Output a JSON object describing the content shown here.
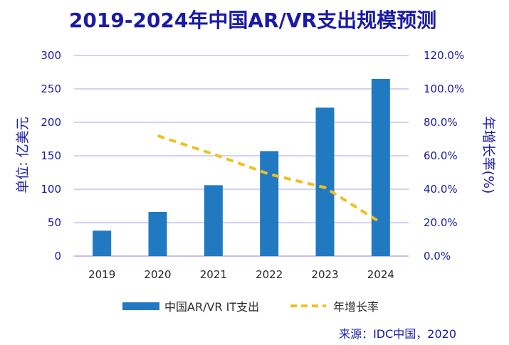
{
  "chart_data": {
    "type": "bar",
    "title": "2019-2024年中国AR/VR支出规模预测",
    "categories": [
      "2019",
      "2020",
      "2021",
      "2022",
      "2023",
      "2024"
    ],
    "series": [
      {
        "name": "中国AR/VR IT支出",
        "type": "bar",
        "axis": "left",
        "values": [
          38,
          66,
          106,
          157,
          222,
          265
        ]
      },
      {
        "name": "年增长率",
        "type": "line",
        "axis": "right",
        "style": "dashed",
        "values": [
          null,
          72.0,
          61.0,
          49.0,
          41.0,
          20.0
        ]
      }
    ],
    "ylabel": "单位: 亿美元",
    "ylabel_right": "年增长率(%)",
    "ylim": [
      0,
      300
    ],
    "ylim_right": [
      0,
      120
    ],
    "yticks": [
      "0",
      "50",
      "100",
      "150",
      "200",
      "250",
      "300"
    ],
    "yticks_right": [
      "0.0%",
      "20.0%",
      "40.0%",
      "60.0%",
      "80.0%",
      "100.0%",
      "120.0%"
    ],
    "grid": true,
    "legend": "bottom",
    "source": "来源：IDC中国，2020",
    "colors": {
      "bar": "#2179c2",
      "line": "#f0c020",
      "text": "#1a1aa6",
      "grid": "#b8b8f0"
    }
  }
}
